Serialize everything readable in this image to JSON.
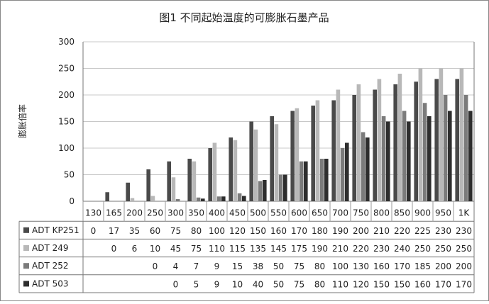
{
  "chart_data": {
    "type": "bar",
    "title": "图1 不同起始温度的可膨胀石墨产品",
    "ylabel": "膨胀倍率",
    "xlabel": "",
    "ylim": [
      0,
      300
    ],
    "yticks": [
      0,
      50,
      100,
      150,
      200,
      250,
      300
    ],
    "grid": "horizontal",
    "legend_position": "data-table",
    "categories": [
      "130",
      "165",
      "200",
      "250",
      "300",
      "350",
      "400",
      "450",
      "500",
      "550",
      "600",
      "650",
      "700",
      "750",
      "800",
      "850",
      "900",
      "950",
      "1K"
    ],
    "series": [
      {
        "name": "ADT KP251",
        "color": "#4a4a4a",
        "values": [
          0,
          17,
          35,
          60,
          75,
          80,
          100,
          120,
          150,
          160,
          170,
          180,
          190,
          200,
          210,
          220,
          225,
          230,
          230
        ],
        "labels": [
          "0",
          "17",
          "35",
          "60",
          "75",
          "80",
          "100",
          "120",
          "150",
          "160",
          "170",
          "180",
          "190",
          "200",
          "210",
          "220",
          "225",
          "230",
          "230"
        ]
      },
      {
        "name": "ADT 249",
        "color": "#b8b8b8",
        "values": [
          null,
          0,
          6,
          10,
          45,
          75,
          110,
          115,
          135,
          145,
          175,
          190,
          210,
          220,
          230,
          240,
          250,
          250,
          250
        ],
        "labels": [
          "",
          "0",
          "6",
          "10",
          "45",
          "75",
          "110",
          "115",
          "135",
          "145",
          "175",
          "190",
          "210",
          "220",
          "230",
          "240",
          "250",
          "250",
          "250"
        ]
      },
      {
        "name": "ADT 252",
        "color": "#7b7b7b",
        "values": [
          null,
          null,
          null,
          0,
          4,
          7,
          9,
          15,
          38,
          50,
          75,
          80,
          100,
          130,
          160,
          170,
          185,
          200,
          200
        ],
        "labels": [
          "",
          "",
          "",
          "0",
          "4",
          "7",
          "9",
          "15",
          "38",
          "50",
          "75",
          "80",
          "100",
          "130",
          "160",
          "170",
          "185",
          "200",
          "200"
        ]
      },
      {
        "name": "ADT 503",
        "color": "#2e2e2e",
        "values": [
          null,
          null,
          null,
          null,
          0,
          5,
          9,
          10,
          40,
          50,
          75,
          80,
          110,
          120,
          150,
          150,
          160,
          170,
          170
        ],
        "labels": [
          "",
          "",
          "",
          "",
          "0",
          "5",
          "9",
          "10",
          "40",
          "50",
          "75",
          "80",
          "110",
          "120",
          "150",
          "150",
          "160",
          "170",
          "170"
        ]
      }
    ]
  }
}
